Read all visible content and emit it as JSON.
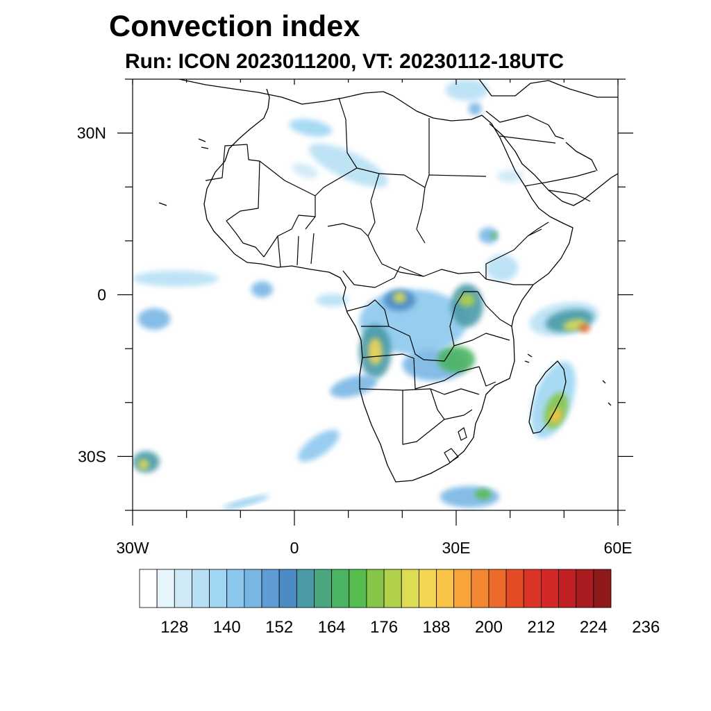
{
  "title": "Convection index",
  "subtitle": "Run: ICON 2023011200,  VT: 20230112-18UTC",
  "map": {
    "projection": "cylindrical equidistant",
    "lon_range": [
      -30,
      60
    ],
    "lat_range": [
      -40,
      40
    ],
    "lon_ticks": [
      {
        "value": -30,
        "label": "30W"
      },
      {
        "value": 0,
        "label": "0"
      },
      {
        "value": 30,
        "label": "30E"
      },
      {
        "value": 60,
        "label": "60E"
      }
    ],
    "lat_ticks": [
      {
        "value": 30,
        "label": "30N"
      },
      {
        "value": 0,
        "label": "0"
      },
      {
        "value": -30,
        "label": "30S"
      }
    ],
    "minor_lon_step": 10,
    "minor_lat_step": 10
  },
  "colorbar": {
    "colors": [
      "#ffffff",
      "#e6f4fb",
      "#cfe9f7",
      "#b7e0f5",
      "#9fd6f3",
      "#8cc8ee",
      "#78b6e4",
      "#5f9bd4",
      "#4d8bc5",
      "#4a9aa8",
      "#4aa67e",
      "#4bb462",
      "#58bd4f",
      "#85c64a",
      "#b1d04b",
      "#dcdc55",
      "#f2d654",
      "#f8c346",
      "#f7a43b",
      "#f28631",
      "#ec6a2a",
      "#e44c26",
      "#dc3327",
      "#d22828",
      "#c11f24",
      "#aa1c1f",
      "#8f1a1b"
    ],
    "labels": [
      "128",
      "140",
      "152",
      "164",
      "176",
      "188",
      "200",
      "212",
      "224",
      "236"
    ]
  },
  "field_blobs": [
    {
      "lon": 50.0,
      "lat": -4.5,
      "rlon": 6.5,
      "rlat": 3.0,
      "level": 3,
      "rot": -10
    },
    {
      "lon": 51.0,
      "lat": -4.8,
      "rlon": 4.5,
      "rlat": 2.0,
      "level": 9,
      "rot": -10
    },
    {
      "lon": 52.0,
      "lat": -5.6,
      "rlon": 2.2,
      "rlat": 1.0,
      "level": 15,
      "rot": -10
    },
    {
      "lon": 53.8,
      "lat": -6.2,
      "rlon": 1.0,
      "rlat": 0.8,
      "level": 20,
      "rot": 0
    },
    {
      "lon": 48.0,
      "lat": -19.5,
      "rlon": 3.5,
      "rlat": 7.5,
      "level": 4,
      "rot": 20
    },
    {
      "lon": 48.5,
      "lat": -21.5,
      "rlon": 2.0,
      "rlat": 3.5,
      "level": 13,
      "rot": 20
    },
    {
      "lon": 48.5,
      "lat": -22.5,
      "rlon": 1.0,
      "rlat": 1.5,
      "level": 17,
      "rot": 20
    },
    {
      "lon": 22.0,
      "lat": -5.0,
      "rlon": 10.0,
      "rlat": 6.0,
      "level": 5,
      "rot": 0
    },
    {
      "lon": 15.0,
      "lat": -10.5,
      "rlon": 3.0,
      "rlat": 5.0,
      "level": 9,
      "rot": 0
    },
    {
      "lon": 15.0,
      "lat": -10.5,
      "rlon": 1.3,
      "rlat": 2.5,
      "level": 16,
      "rot": 0
    },
    {
      "lon": 19.5,
      "lat": -1.0,
      "rlon": 3.0,
      "rlat": 2.0,
      "level": 8,
      "rot": 0
    },
    {
      "lon": 19.5,
      "lat": -0.5,
      "rlon": 1.2,
      "rlat": 1.0,
      "level": 15,
      "rot": 0
    },
    {
      "lon": 26.0,
      "lat": -13.0,
      "rlon": 6.0,
      "rlat": 3.0,
      "level": 6,
      "rot": 0
    },
    {
      "lon": 30.0,
      "lat": -12.0,
      "rlon": 3.5,
      "rlat": 2.5,
      "level": 11,
      "rot": 0
    },
    {
      "lon": 32.0,
      "lat": -2.0,
      "rlon": 3.0,
      "rlat": 4.0,
      "level": 9,
      "rot": 0
    },
    {
      "lon": 32.0,
      "lat": -1.0,
      "rlon": 1.5,
      "rlat": 1.2,
      "level": 14,
      "rot": 0
    },
    {
      "lon": 38.5,
      "lat": 5.0,
      "rlon": 3.0,
      "rlat": 2.5,
      "level": 3,
      "rot": 0
    },
    {
      "lon": 36.0,
      "lat": 11.0,
      "rlon": 1.8,
      "rlat": 1.5,
      "level": 6,
      "rot": 0
    },
    {
      "lon": 37.0,
      "lat": 11.0,
      "rlon": 0.6,
      "rlat": 0.6,
      "level": 12,
      "rot": 0
    },
    {
      "lon": 4.5,
      "lat": -28.0,
      "rlon": 4.5,
      "rlat": 1.8,
      "level": 5,
      "rot": -35
    },
    {
      "lon": 11.0,
      "lat": -17.0,
      "rlon": 4.5,
      "rlat": 1.8,
      "level": 6,
      "rot": -15
    },
    {
      "lon": 32.5,
      "lat": -37.5,
      "rlon": 5.5,
      "rlat": 2.0,
      "level": 6,
      "rot": 0
    },
    {
      "lon": 35.0,
      "lat": -37.0,
      "rlon": 1.5,
      "rlat": 1.0,
      "level": 12,
      "rot": 0
    },
    {
      "lon": -27.5,
      "lat": -31.0,
      "rlon": 2.5,
      "rlat": 2.0,
      "level": 9,
      "rot": 0
    },
    {
      "lon": -28.0,
      "lat": -31.5,
      "rlon": 1.0,
      "rlat": 1.0,
      "level": 15,
      "rot": 0
    },
    {
      "lon": -26.0,
      "lat": -4.5,
      "rlon": 3.0,
      "rlat": 2.0,
      "level": 6,
      "rot": 0
    },
    {
      "lon": -22.0,
      "lat": 3.0,
      "rlon": 8.0,
      "rlat": 1.5,
      "level": 3,
      "rot": 0
    },
    {
      "lon": -6.0,
      "lat": 1.0,
      "rlon": 2.0,
      "rlat": 1.5,
      "level": 6,
      "rot": 0
    },
    {
      "lon": 7.0,
      "lat": -1.0,
      "rlon": 3.0,
      "rlat": 1.2,
      "level": 3,
      "rot": 0
    },
    {
      "lon": 10.0,
      "lat": 24.0,
      "rlon": 8.0,
      "rlat": 2.5,
      "level": 3,
      "rot": 25
    },
    {
      "lon": 3.0,
      "lat": 31.0,
      "rlon": 4.0,
      "rlat": 1.5,
      "level": 4,
      "rot": 10
    },
    {
      "lon": 2.0,
      "lat": 23.0,
      "rlon": 2.5,
      "rlat": 1.2,
      "level": 2,
      "rot": 20
    },
    {
      "lon": 32.0,
      "lat": 38.0,
      "rlon": 4.0,
      "rlat": 2.0,
      "level": 3,
      "rot": 0
    },
    {
      "lon": 40.0,
      "lat": 22.0,
      "rlon": 2.5,
      "rlat": 1.2,
      "level": 2,
      "rot": 0
    },
    {
      "lon": 33.5,
      "lat": 34.5,
      "rlon": 1.2,
      "rlat": 1.2,
      "level": 6,
      "rot": 0
    },
    {
      "lon": -9.0,
      "lat": -38.5,
      "rlon": 4.5,
      "rlat": 0.6,
      "level": 5,
      "rot": -15
    }
  ]
}
